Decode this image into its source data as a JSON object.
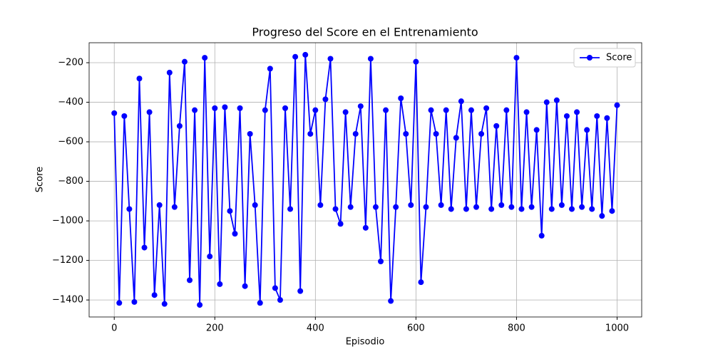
{
  "chart_data": {
    "type": "line",
    "title": "Progreso del Score en el Entrenamiento",
    "x_label": "Episodio",
    "y_label": "Score",
    "x": [
      0,
      10,
      20,
      30,
      40,
      50,
      60,
      70,
      80,
      90,
      100,
      110,
      120,
      130,
      140,
      150,
      160,
      170,
      180,
      190,
      200,
      210,
      220,
      230,
      240,
      250,
      260,
      270,
      280,
      290,
      300,
      310,
      320,
      330,
      340,
      350,
      360,
      370,
      380,
      390,
      400,
      410,
      420,
      430,
      440,
      450,
      460,
      470,
      480,
      490,
      500,
      510,
      520,
      530,
      540,
      550,
      560,
      570,
      580,
      590,
      600,
      610,
      620,
      630,
      640,
      650,
      660,
      670,
      680,
      690,
      700,
      710,
      720,
      730,
      740,
      750,
      760,
      770,
      780,
      790,
      800,
      810,
      820,
      830,
      840,
      850,
      860,
      870,
      880,
      890,
      900,
      910,
      920,
      930,
      940,
      950,
      960,
      970,
      980,
      990,
      1000
    ],
    "series": [
      {
        "name": "Score",
        "color": "#0000ff",
        "values": [
          -455,
          -1415,
          -470,
          -940,
          -1410,
          -280,
          -1135,
          -450,
          -1375,
          -920,
          -1420,
          -250,
          -930,
          -520,
          -195,
          -1300,
          -440,
          -1425,
          -175,
          -1180,
          -430,
          -1320,
          -425,
          -950,
          -1065,
          -430,
          -1330,
          -560,
          -920,
          -1415,
          -440,
          -230,
          -1340,
          -1400,
          -430,
          -940,
          -170,
          -1355,
          -160,
          -560,
          -440,
          -920,
          -385,
          -180,
          -940,
          -1015,
          -450,
          -930,
          -560,
          -420,
          -1035,
          -180,
          -930,
          -1205,
          -440,
          -1405,
          -930,
          -380,
          -560,
          -920,
          -195,
          -1310,
          -930,
          -440,
          -560,
          -920,
          -440,
          -940,
          -580,
          -395,
          -940,
          -440,
          -930,
          -560,
          -430,
          -940,
          -520,
          -920,
          -440,
          -930,
          -175,
          -940,
          -450,
          -930,
          -540,
          -1075,
          -400,
          -940,
          -390,
          -920,
          -470,
          -940,
          -450,
          -930,
          -540,
          -940,
          -470,
          -975,
          -480,
          -950,
          -415
        ]
      }
    ],
    "xlim": [
      -49.95,
      1048.95
    ],
    "ylim": [
      -1486,
      -99
    ],
    "xticks": [
      0,
      200,
      400,
      600,
      800,
      1000
    ],
    "yticks": [
      {
        "value": -1400,
        "label": "−1400"
      },
      {
        "value": -1200,
        "label": "−1200"
      },
      {
        "value": -1000,
        "label": "−1000"
      },
      {
        "value": -800,
        "label": "−800"
      },
      {
        "value": -600,
        "label": "−600"
      },
      {
        "value": -400,
        "label": "−400"
      },
      {
        "value": -200,
        "label": "−200"
      }
    ],
    "grid": true,
    "legend": "upper-right"
  }
}
